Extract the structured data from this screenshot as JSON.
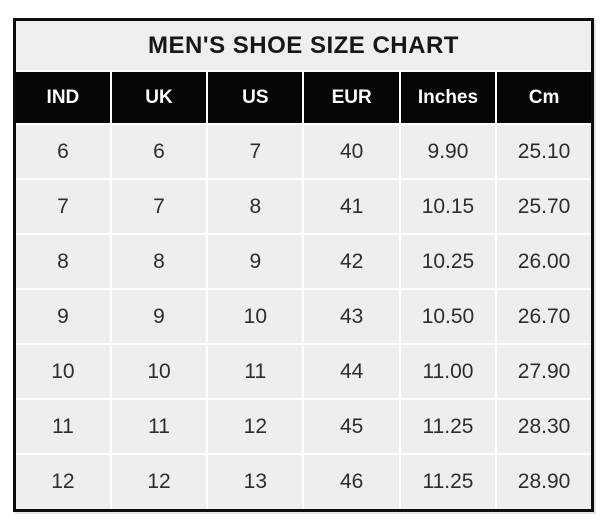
{
  "title": "MEN'S SHOE SIZE CHART",
  "table": {
    "headers": [
      "IND",
      "UK",
      "US",
      "EUR",
      "Inches",
      "Cm"
    ],
    "rows": [
      [
        "6",
        "6",
        "7",
        "40",
        "9.90",
        "25.10"
      ],
      [
        "7",
        "7",
        "8",
        "41",
        "10.15",
        "25.70"
      ],
      [
        "8",
        "8",
        "9",
        "42",
        "10.25",
        "26.00"
      ],
      [
        "9",
        "9",
        "10",
        "43",
        "10.50",
        "26.70"
      ],
      [
        "10",
        "10",
        "11",
        "44",
        "11.00",
        "27.90"
      ],
      [
        "11",
        "11",
        "12",
        "45",
        "11.25",
        "28.30"
      ],
      [
        "12",
        "12",
        "13",
        "46",
        "11.25",
        "28.90"
      ]
    ]
  },
  "chart_data": {
    "type": "table",
    "title": "MEN'S SHOE SIZE CHART",
    "columns": [
      "IND",
      "UK",
      "US",
      "EUR",
      "Inches",
      "Cm"
    ],
    "rows": [
      [
        6,
        6,
        7,
        40,
        9.9,
        25.1
      ],
      [
        7,
        7,
        8,
        41,
        10.15,
        25.7
      ],
      [
        8,
        8,
        9,
        42,
        10.25,
        26.0
      ],
      [
        9,
        9,
        10,
        43,
        10.5,
        26.7
      ],
      [
        10,
        10,
        11,
        44,
        11.0,
        27.9
      ],
      [
        11,
        11,
        12,
        45,
        11.25,
        28.3
      ],
      [
        12,
        12,
        13,
        46,
        11.25,
        28.9
      ]
    ]
  },
  "colors": {
    "outer_border": "#0d0d0d",
    "title_background": "#f0efee",
    "header_background": "#050505",
    "header_text": "#fdfdfd",
    "cell_background": "#efeeec",
    "cell_text": "#2d2d2d",
    "gridline": "#ffffff"
  }
}
